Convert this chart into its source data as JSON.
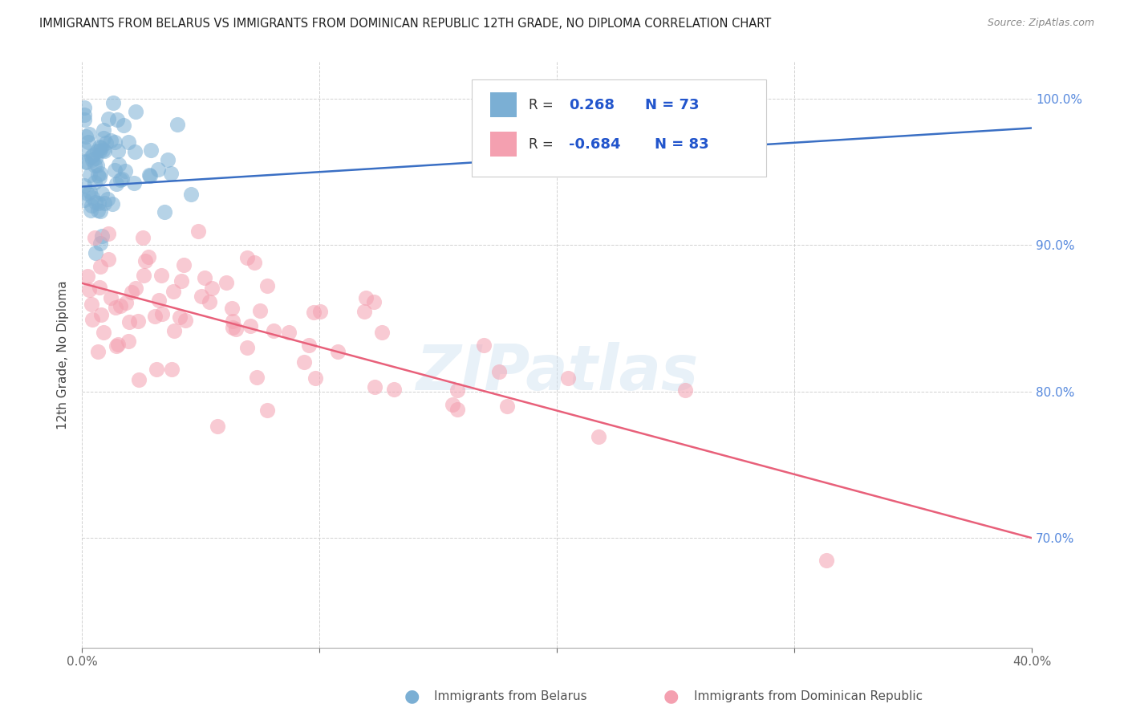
{
  "title": "IMMIGRANTS FROM BELARUS VS IMMIGRANTS FROM DOMINICAN REPUBLIC 12TH GRADE, NO DIPLOMA CORRELATION CHART",
  "source": "Source: ZipAtlas.com",
  "ylabel_label": "12th Grade, No Diploma",
  "legend_blue_r_val": "0.268",
  "legend_blue_n": "N = 73",
  "legend_pink_r_val": "-0.684",
  "legend_pink_n": "N = 83",
  "blue_color": "#7BAFD4",
  "pink_color": "#F4A0B0",
  "blue_line_color": "#3A6FC4",
  "pink_line_color": "#E8607A",
  "watermark": "ZIPatlas",
  "xlim": [
    0.0,
    0.4
  ],
  "ylim": [
    0.625,
    1.025
  ],
  "right_yticks": [
    0.7,
    0.8,
    0.9,
    1.0
  ],
  "right_yticklabels": [
    "70.0%",
    "80.0%",
    "90.0%",
    "100.0%"
  ],
  "blue_R": 0.268,
  "pink_R": -0.684,
  "blue_N": 73,
  "pink_N": 83,
  "blue_line_x": [
    0.0,
    0.4
  ],
  "blue_line_y": [
    0.94,
    0.98
  ],
  "pink_line_x": [
    0.0,
    0.4
  ],
  "pink_line_y": [
    0.874,
    0.7
  ]
}
